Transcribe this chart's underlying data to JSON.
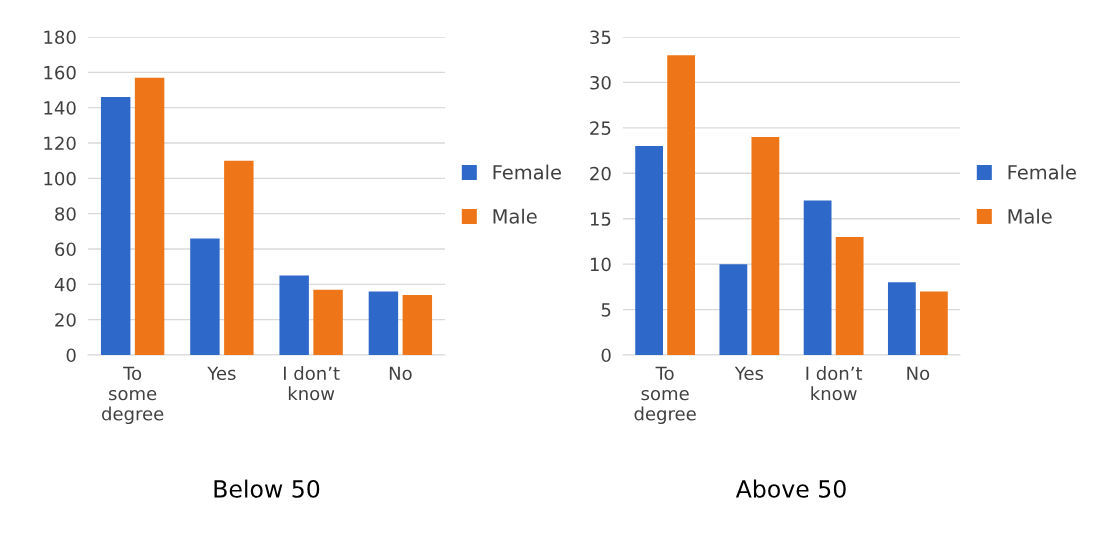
{
  "chart_data": [
    {
      "type": "bar",
      "xlabel": "Below 50",
      "categories": [
        "To\nsome\ndegree",
        "Yes",
        "I don’t\nknow",
        "No"
      ],
      "series": [
        {
          "name": "Female",
          "color": "#2e69c9",
          "values": [
            146,
            66,
            45,
            36
          ]
        },
        {
          "name": "Male",
          "color": "#ee7518",
          "values": [
            157,
            110,
            37,
            34
          ]
        }
      ],
      "ylim": [
        0,
        180
      ],
      "yticks": [
        0,
        20,
        40,
        60,
        80,
        100,
        120,
        140,
        160,
        180
      ],
      "grid": "y",
      "legend": "right"
    },
    {
      "type": "bar",
      "xlabel": "Above 50",
      "categories": [
        "To\nsome\ndegree",
        "Yes",
        "I don’t\nknow",
        "No"
      ],
      "series": [
        {
          "name": "Female",
          "color": "#2e69c9",
          "values": [
            23,
            10,
            17,
            8
          ]
        },
        {
          "name": "Male",
          "color": "#ee7518",
          "values": [
            33,
            24,
            13,
            7
          ]
        }
      ],
      "ylim": [
        0,
        35
      ],
      "yticks": [
        0,
        5,
        10,
        15,
        20,
        25,
        30,
        35
      ],
      "grid": "y",
      "legend": "right"
    }
  ]
}
